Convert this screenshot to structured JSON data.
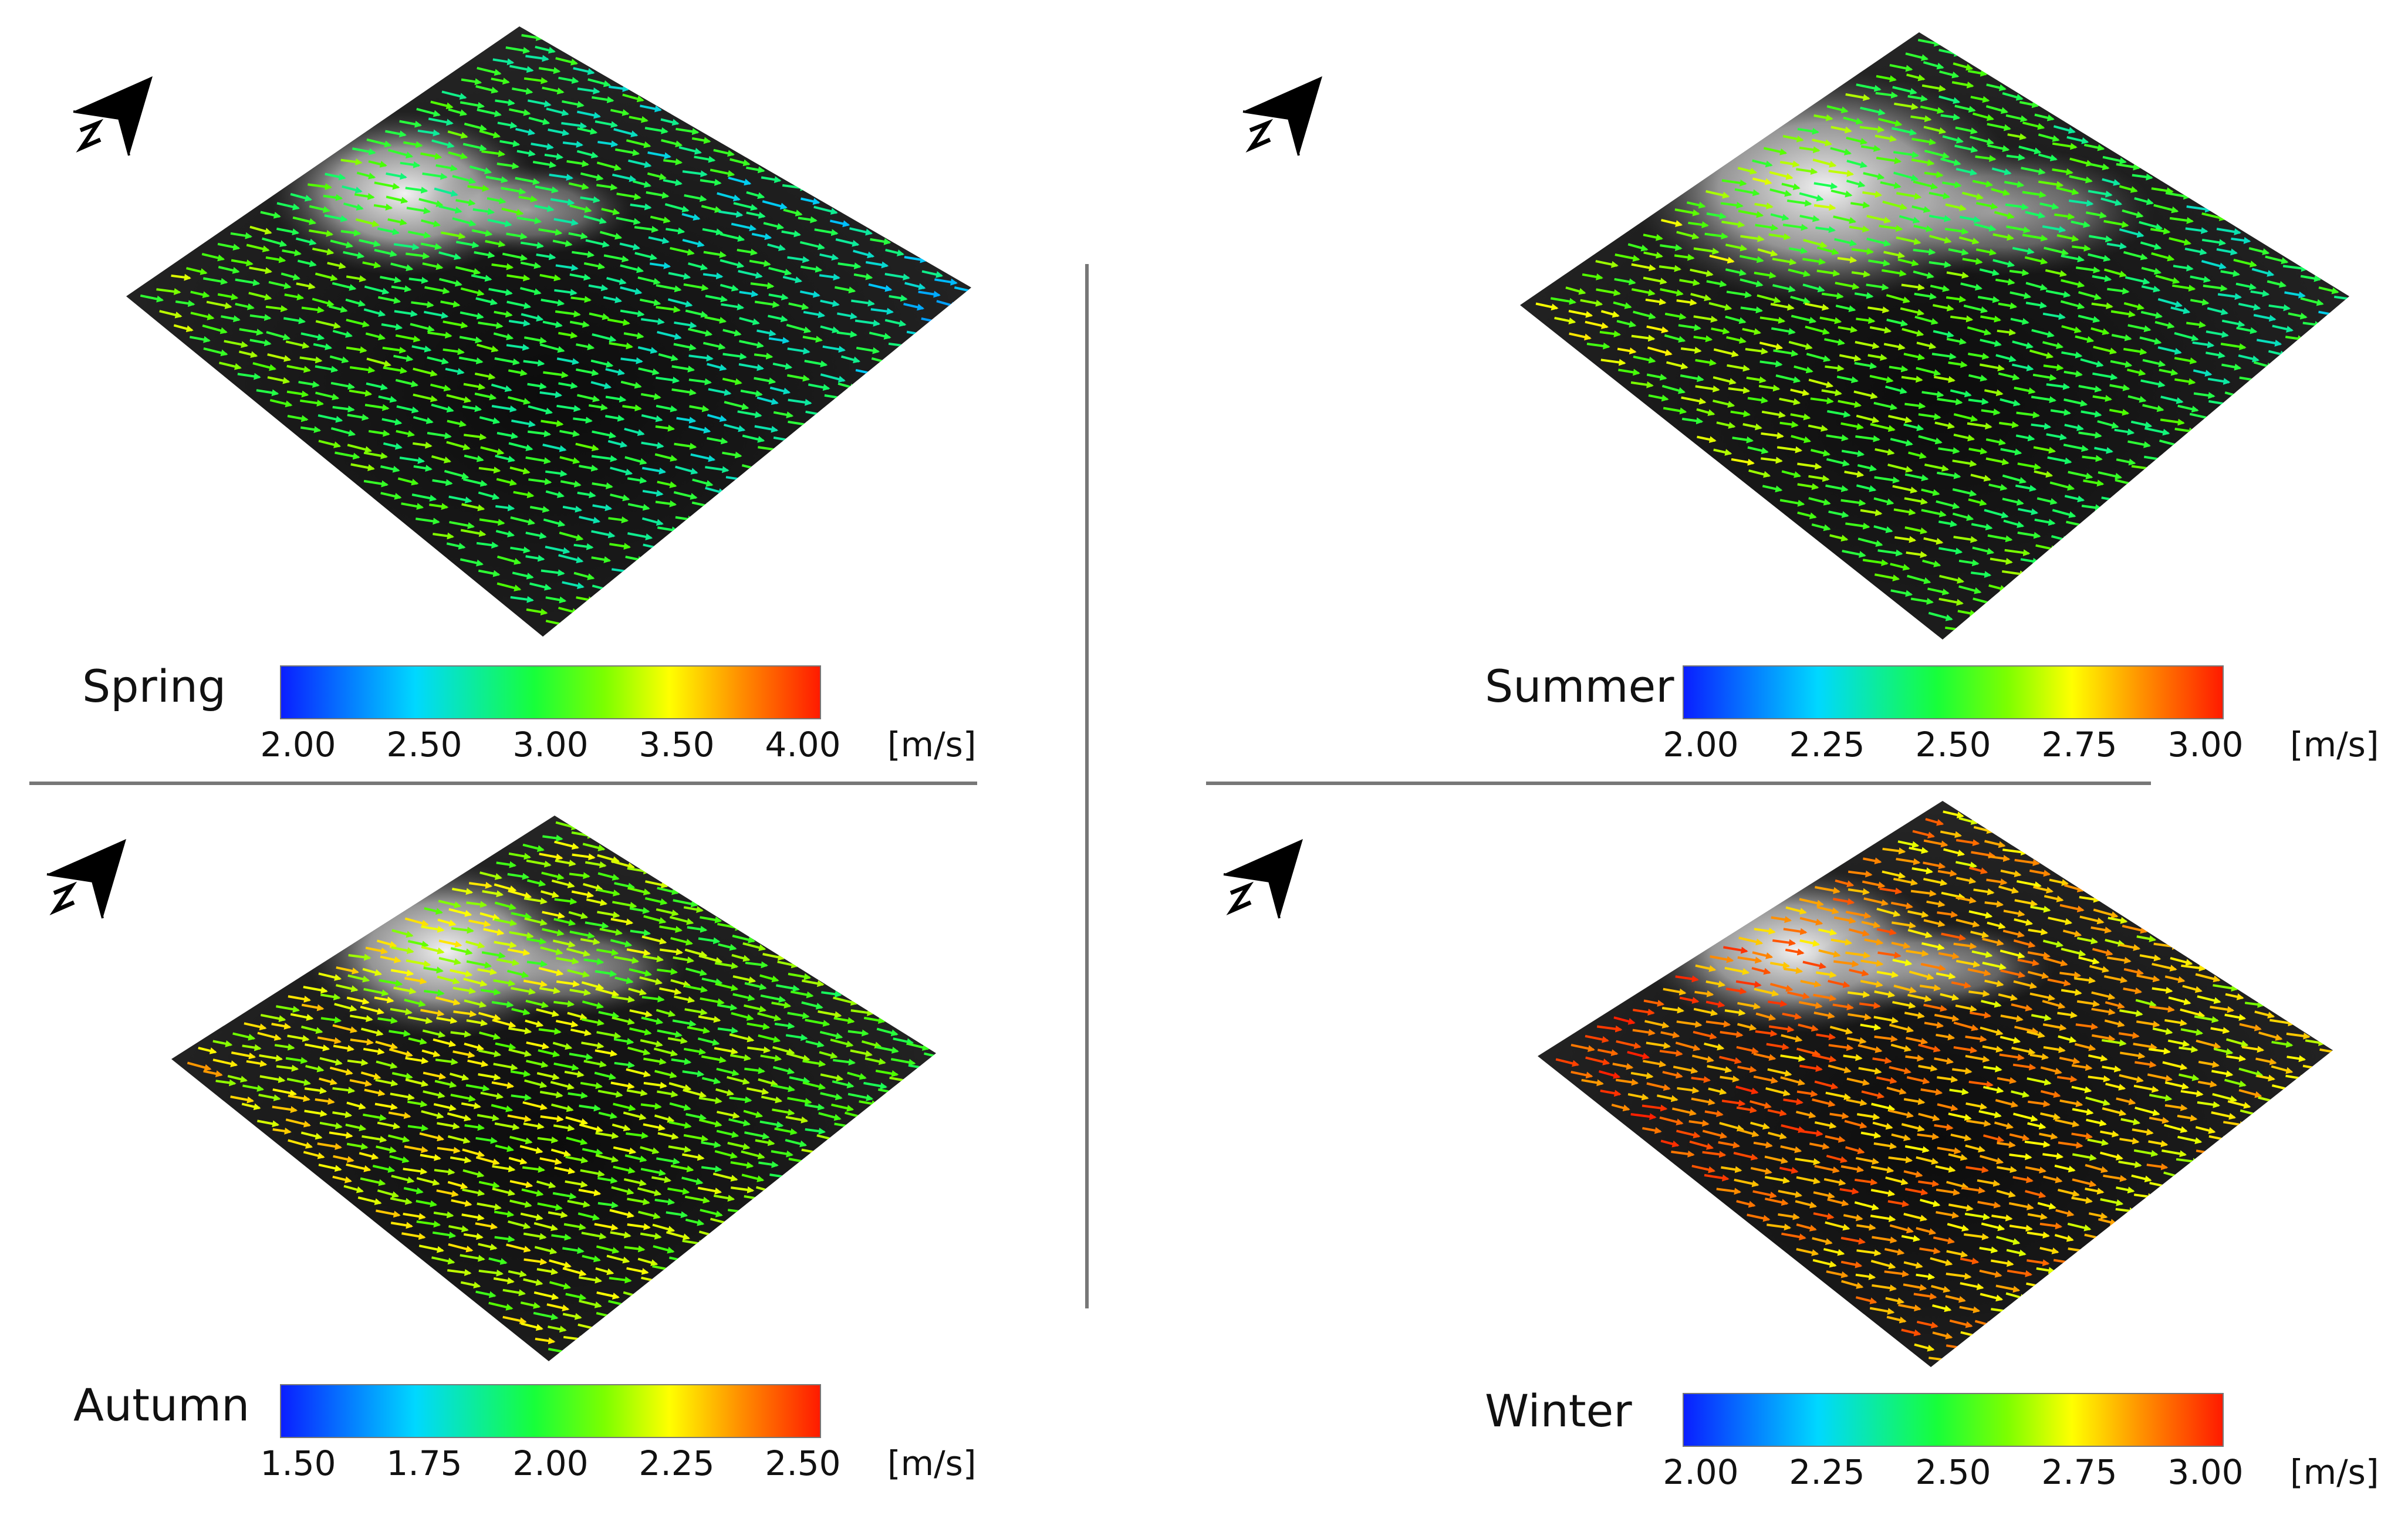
{
  "panels": [
    {
      "season": "Spring",
      "ticks": [
        "2.00",
        "2.50",
        "3.00",
        "3.50",
        "4.00"
      ],
      "unit": "[m/s]",
      "arrow_bias": 0.38,
      "palette": "spring"
    },
    {
      "season": "Summer",
      "ticks": [
        "2.00",
        "2.25",
        "2.50",
        "2.75",
        "3.00"
      ],
      "unit": "[m/s]",
      "arrow_bias": 0.45,
      "palette": "summer"
    },
    {
      "season": "Autumn",
      "ticks": [
        "1.50",
        "1.75",
        "2.00",
        "2.25",
        "2.50"
      ],
      "unit": "[m/s]",
      "arrow_bias": 0.55,
      "palette": "autumn"
    },
    {
      "season": "Winter",
      "ticks": [
        "2.00",
        "2.25",
        "2.50",
        "2.75",
        "3.00"
      ],
      "unit": "[m/s]",
      "arrow_bias": 0.78,
      "palette": "winter"
    }
  ],
  "colormap": [
    "#0a1eff",
    "#00c8ff",
    "#17ff5a",
    "#4cff00",
    "#ffff00",
    "#ff8c00",
    "#ff2000"
  ],
  "divider_color": "#777777",
  "icons": {
    "north_arrow": "north-arrow-icon"
  }
}
